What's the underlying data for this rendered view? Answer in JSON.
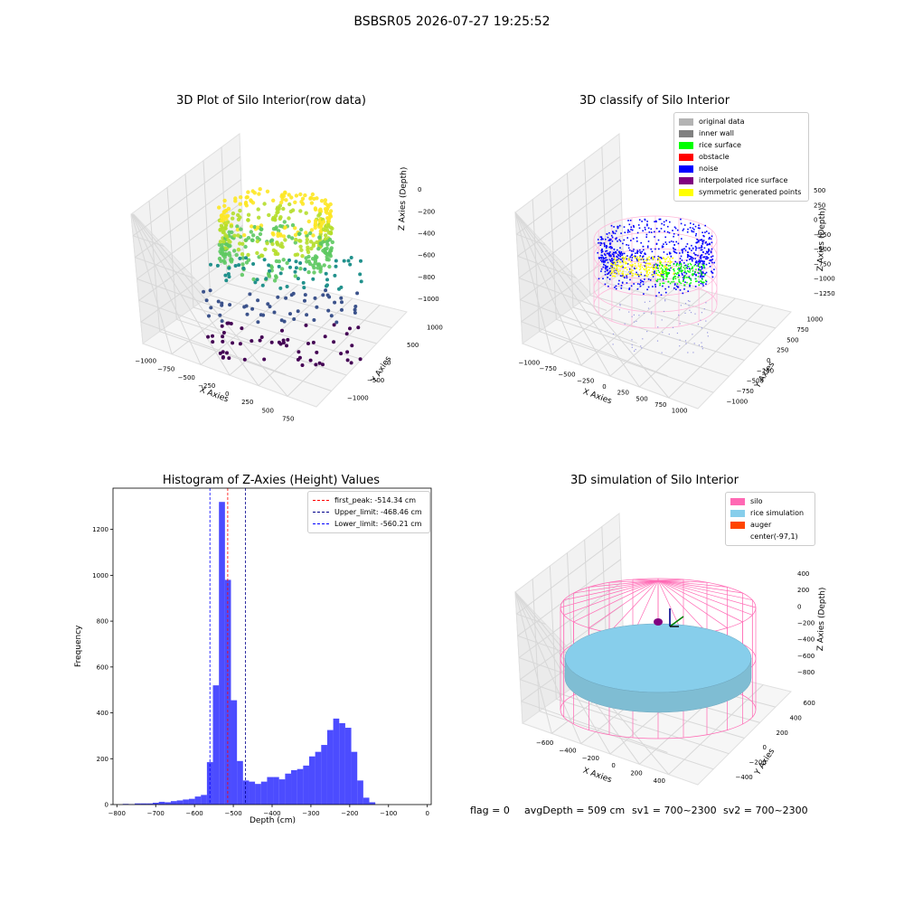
{
  "suptitle": "BSBSR05 2026-07-27 19:25:52",
  "footer": {
    "flag": "flag = 0",
    "avg_depth": "avgDepth = 509 cm",
    "sv1": "sv1 = 700~2300",
    "sv2": "sv2 = 700~2300"
  },
  "colors": {
    "histogram_bar": "#0000ff",
    "first_peak_line": "#ff0000",
    "limit_lines": "#00008b",
    "silo_wire": "#ff69b4",
    "rice_surface": "#87ceeb",
    "noise": "#0000ff",
    "rice_classified": "#00ff00",
    "symmetric": "#ffff00"
  },
  "chart_data": [
    {
      "type": "scatter3d",
      "title": "3D Plot of Silo Interior(row data)",
      "xlabel": "X Axies",
      "ylabel": "Y Axies",
      "zlabel": "Z Axies (Depth)",
      "xticks": [
        "−1000",
        "−750",
        "−500",
        "−250",
        "0",
        "250",
        "500",
        "750"
      ],
      "yticks": [
        "−1000",
        "−500",
        "0",
        "500",
        "1000"
      ],
      "zticks": [
        "0",
        "−200",
        "−400",
        "−600",
        "−800",
        "−1000"
      ],
      "colormap": "viridis",
      "xlim": [
        -1000,
        750
      ],
      "ylim": [
        -1000,
        1000
      ],
      "zlim": [
        -1000,
        0
      ]
    },
    {
      "type": "scatter3d",
      "title": "3D classify of Silo Interior",
      "xlabel": "X Axies",
      "ylabel": "Y Axies",
      "zlabel": "Z Axies (Depth)",
      "xticks": [
        "−1000",
        "−750",
        "−500",
        "−250",
        "0",
        "250",
        "500",
        "750",
        "1000"
      ],
      "yticks": [
        "−1000",
        "−750",
        "−500",
        "−250",
        "0",
        "250",
        "500",
        "750",
        "1000"
      ],
      "zticks": [
        "500",
        "250",
        "0",
        "−250",
        "−500",
        "−750",
        "−1000",
        "−1250"
      ],
      "zticks_partial": "0",
      "legend_placement": "top-right",
      "legend": [
        {
          "label": "original data",
          "color": "#b3b3b3"
        },
        {
          "label": "inner wall",
          "color": "#808080"
        },
        {
          "label": "rice surface",
          "color": "#00ff00"
        },
        {
          "label": "obstacle",
          "color": "#ff0000"
        },
        {
          "label": "noise",
          "color": "#0000ff"
        },
        {
          "label": "interpolated rice surface",
          "color": "#800080"
        },
        {
          "label": "symmetric generated points",
          "color": "#ffff00"
        }
      ]
    },
    {
      "type": "bar",
      "title": "Histogram of Z-Axies (Height) Values",
      "xlabel": "Depth (cm)",
      "ylabel": "Frequency",
      "xlim": [
        -810,
        10
      ],
      "ylim": [
        0,
        1380
      ],
      "xticks": [
        -800,
        -700,
        -600,
        -500,
        -400,
        -300,
        -200,
        -100,
        0
      ],
      "xtick_labels": [
        "−800",
        "−700",
        "−600",
        "−500",
        "−400",
        "−300",
        "−200",
        "−100",
        "0"
      ],
      "yticks": [
        0,
        200,
        400,
        600,
        800,
        1000,
        1200
      ],
      "yticks_labels": [
        "0",
        "200",
        "400",
        "600",
        "800",
        "1000",
        "1200"
      ],
      "bin_width": 15.5,
      "bin_start": -785,
      "values": [
        3,
        2,
        5,
        5,
        5,
        8,
        12,
        10,
        15,
        18,
        22,
        25,
        35,
        42,
        185,
        520,
        1320,
        980,
        455,
        190,
        105,
        100,
        90,
        100,
        120,
        120,
        110,
        135,
        150,
        155,
        170,
        210,
        230,
        260,
        325,
        375,
        355,
        335,
        230,
        105,
        30,
        10
      ],
      "vlines": [
        {
          "label": "first_peak: -514.34 cm",
          "x": -514.34,
          "color": "#ff0000"
        },
        {
          "label": "Upper_limit: -468.46 cm",
          "x": -468.46,
          "color": "#00008b"
        },
        {
          "label": "Lower_limit: -560.21 cm",
          "x": -560.21,
          "color": "#0000ff"
        }
      ],
      "legend_placement": "top-right"
    },
    {
      "type": "surface3d",
      "title": "3D simulation of Silo Interior",
      "xlabel": "X Axies",
      "ylabel": "Y Axies",
      "zlabel": "Z Axies (Depth)",
      "xticks": [
        "−600",
        "−400",
        "−200",
        "0",
        "200",
        "400"
      ],
      "yticks": [
        "−400",
        "−200",
        "0",
        "200",
        "400",
        "600"
      ],
      "zticks": [
        "400",
        "200",
        "0",
        "−200",
        "−400",
        "−600",
        "−800"
      ],
      "legend_placement": "top-right",
      "legend": [
        {
          "label": "silo",
          "color": "#ff69b4"
        },
        {
          "label": "rice simulation",
          "color": "#87ceeb"
        },
        {
          "label": "auger",
          "color": "#ff4500"
        },
        {
          "label": "center(-97,1)",
          "color": ""
        }
      ]
    }
  ]
}
